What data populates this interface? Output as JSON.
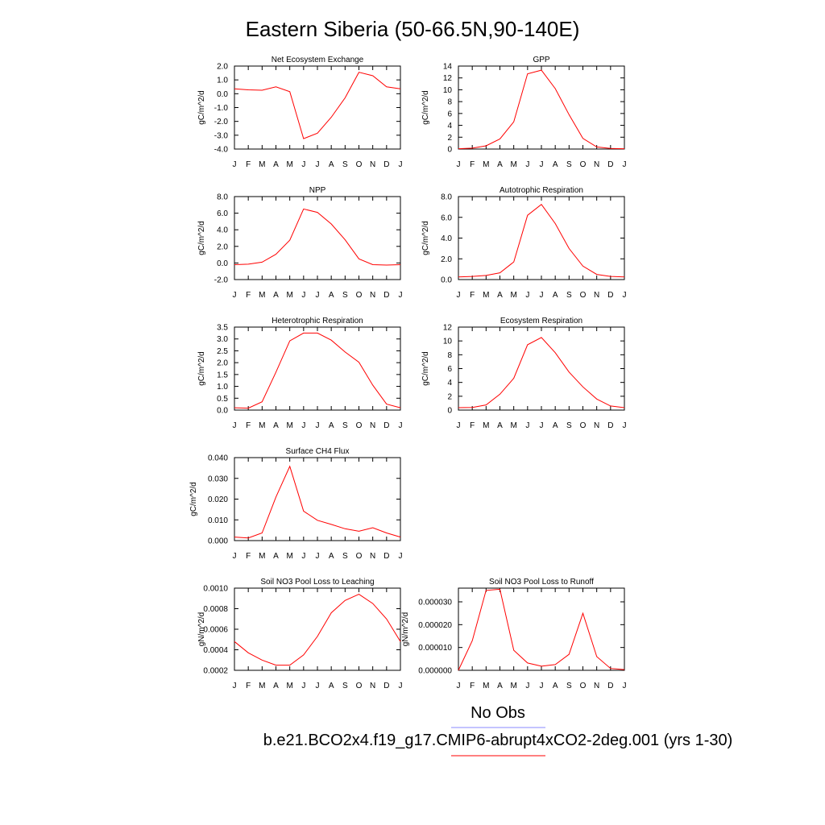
{
  "title": "Eastern Siberia (50-66.5N,90-140E)",
  "legend": {
    "obs_label": "No Obs",
    "obs_color": "#8888ff",
    "model_label": "b.e21.BCO2x4.f19_g17.CMIP6-abrupt4xCO2-2deg.001 (yrs 1-30)",
    "model_color": "#ff0000"
  },
  "months": [
    "J",
    "F",
    "M",
    "A",
    "M",
    "J",
    "J",
    "A",
    "S",
    "O",
    "N",
    "D",
    "J"
  ],
  "chart_data": [
    {
      "type": "line",
      "title": "Net Ecosystem Exchange",
      "ylabel": "gC/m^2/d",
      "ylim": [
        -4.0,
        2.0
      ],
      "yticks": [
        "-4.0",
        "-3.0",
        "-2.0",
        "-1.0",
        "0.0",
        "1.0",
        "2.0"
      ],
      "ytick_values": [
        -4.0,
        -3.0,
        -2.0,
        -1.0,
        0.0,
        1.0,
        2.0
      ],
      "values": [
        0.35,
        0.28,
        0.25,
        0.5,
        0.15,
        -3.25,
        -2.85,
        -1.7,
        -0.3,
        1.55,
        1.3,
        0.5,
        0.35
      ]
    },
    {
      "type": "line",
      "title": "GPP",
      "ylabel": "gC/m^2/d",
      "ylim": [
        0,
        14
      ],
      "yticks": [
        "0",
        "2",
        "4",
        "6",
        "8",
        "10",
        "12",
        "14"
      ],
      "ytick_values": [
        0,
        2,
        4,
        6,
        8,
        10,
        12,
        14
      ],
      "values": [
        0.05,
        0.15,
        0.55,
        1.7,
        4.6,
        12.7,
        13.3,
        10.2,
        5.8,
        1.8,
        0.35,
        0.1,
        0.05
      ]
    },
    {
      "type": "line",
      "title": "NPP",
      "ylabel": "gC/m^2/d",
      "ylim": [
        -2.0,
        8.0
      ],
      "yticks": [
        "-2.0",
        "0.0",
        "2.0",
        "4.0",
        "6.0",
        "8.0"
      ],
      "ytick_values": [
        -2.0,
        0.0,
        2.0,
        4.0,
        6.0,
        8.0
      ],
      "values": [
        -0.2,
        -0.15,
        0.1,
        1.05,
        2.75,
        6.5,
        6.1,
        4.7,
        2.8,
        0.5,
        -0.2,
        -0.25,
        -0.2
      ]
    },
    {
      "type": "line",
      "title": "Autotrophic Respiration",
      "ylabel": "gC/m^2/d",
      "ylim": [
        0.0,
        8.0
      ],
      "yticks": [
        "0.0",
        "2.0",
        "4.0",
        "6.0",
        "8.0"
      ],
      "ytick_values": [
        0.0,
        2.0,
        4.0,
        6.0,
        8.0
      ],
      "values": [
        0.25,
        0.3,
        0.4,
        0.65,
        1.7,
        6.2,
        7.25,
        5.4,
        3.0,
        1.3,
        0.5,
        0.3,
        0.25
      ]
    },
    {
      "type": "line",
      "title": "Heterotrophic Respiration",
      "ylabel": "gC/m^2/d",
      "ylim": [
        0.0,
        3.5
      ],
      "yticks": [
        "0.0",
        "0.5",
        "1.0",
        "1.5",
        "2.0",
        "2.5",
        "3.0",
        "3.5"
      ],
      "ytick_values": [
        0.0,
        0.5,
        1.0,
        1.5,
        2.0,
        2.5,
        3.0,
        3.5
      ],
      "values": [
        0.1,
        0.08,
        0.35,
        1.6,
        2.92,
        3.25,
        3.25,
        2.95,
        2.45,
        2.02,
        1.05,
        0.25,
        0.1
      ]
    },
    {
      "type": "line",
      "title": "Ecosystem Respiration",
      "ylabel": "gC/m^2/d",
      "ylim": [
        0,
        12
      ],
      "yticks": [
        "0",
        "2",
        "4",
        "6",
        "8",
        "10",
        "12"
      ],
      "ytick_values": [
        0,
        2,
        4,
        6,
        8,
        10,
        12
      ],
      "values": [
        0.35,
        0.38,
        0.75,
        2.3,
        4.6,
        9.45,
        10.5,
        8.3,
        5.5,
        3.35,
        1.6,
        0.6,
        0.35
      ]
    },
    {
      "type": "line",
      "title": "Surface CH4 Flux",
      "ylabel": "gC/m^2/d",
      "ylim": [
        0.0,
        0.04
      ],
      "yticks": [
        "0.000",
        "0.010",
        "0.020",
        "0.030",
        "0.040"
      ],
      "ytick_values": [
        0.0,
        0.01,
        0.02,
        0.03,
        0.04
      ],
      "values": [
        0.0017,
        0.0013,
        0.0037,
        0.021,
        0.0358,
        0.0142,
        0.0098,
        0.0078,
        0.0057,
        0.0045,
        0.0062,
        0.0037,
        0.0017
      ]
    },
    {
      "type": "line",
      "title": "Soil NO3 Pool Loss to Leaching",
      "ylabel": "gN/m^2/d",
      "ylim": [
        0.0002,
        0.001
      ],
      "yticks": [
        "0.0002",
        "0.0004",
        "0.0006",
        "0.0008",
        "0.0010"
      ],
      "ytick_values": [
        0.0002,
        0.0004,
        0.0006,
        0.0008,
        0.001
      ],
      "values": [
        0.00048,
        0.00037,
        0.0003,
        0.00025,
        0.00025,
        0.00035,
        0.00053,
        0.00076,
        0.00088,
        0.00094,
        0.00085,
        0.0007,
        0.00048
      ]
    },
    {
      "type": "line",
      "title": "Soil NO3 Pool Loss to Runoff",
      "ylabel": "gN/m^2/d",
      "ylim": [
        0.0,
        3.6e-05
      ],
      "yticks": [
        "0.000000",
        "0.000010",
        "0.000020",
        "0.000030"
      ],
      "ytick_values": [
        0.0,
        1e-05,
        2e-05,
        3e-05
      ],
      "values": [
        0.0,
        1.3e-05,
        3.5e-05,
        3.55e-05,
        8.8e-06,
        3.2e-06,
        1.8e-06,
        2.5e-06,
        7e-06,
        2.5e-05,
        6e-06,
        8e-07,
        3e-07
      ]
    }
  ]
}
